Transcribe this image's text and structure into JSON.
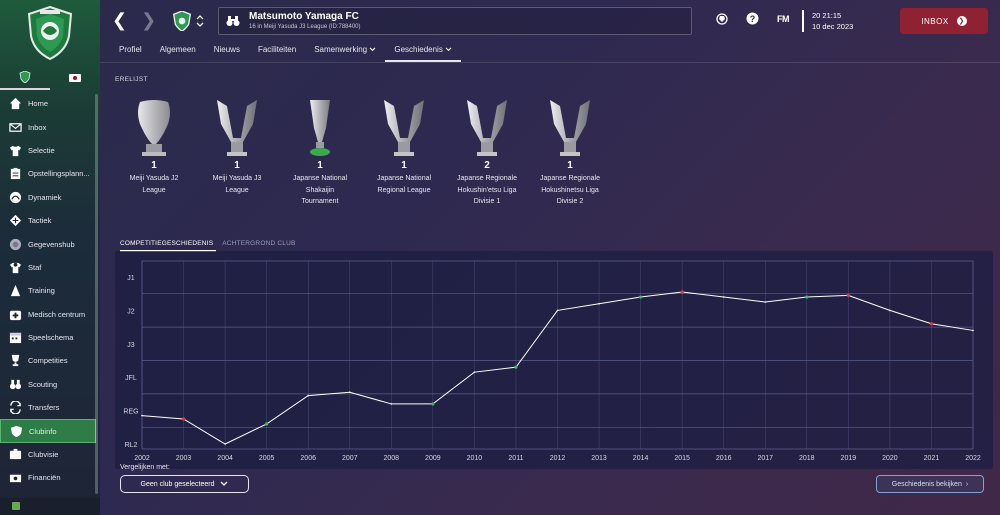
{
  "sidebar": {
    "logo": "matsumoto-yamaga-crest",
    "items": [
      {
        "label": "Home",
        "icon": "home-icon"
      },
      {
        "label": "Inbox",
        "icon": "mail-icon"
      },
      {
        "label": "Selectie",
        "icon": "shirt-icon"
      },
      {
        "label": "Opstellingsplann...",
        "icon": "clipboard-icon"
      },
      {
        "label": "Dynamiek",
        "icon": "dynamics-icon"
      },
      {
        "label": "Tactiek",
        "icon": "tactics-icon"
      },
      {
        "label": "Gegevenshub",
        "icon": "data-hub-icon"
      },
      {
        "label": "Staf",
        "icon": "staff-icon"
      },
      {
        "label": "Training",
        "icon": "training-cone-icon"
      },
      {
        "label": "Medisch centrum",
        "icon": "medical-icon"
      },
      {
        "label": "Speelschema",
        "icon": "calendar-icon"
      },
      {
        "label": "Competities",
        "icon": "trophy-icon"
      },
      {
        "label": "Scouting",
        "icon": "binoculars-icon"
      },
      {
        "label": "Transfers",
        "icon": "transfer-icon"
      },
      {
        "label": "Clubinfo",
        "icon": "shield-icon"
      },
      {
        "label": "Clubvisie",
        "icon": "vision-icon"
      },
      {
        "label": "Financiën",
        "icon": "finance-icon"
      }
    ],
    "active_index": 14
  },
  "header": {
    "team_name": "Matsumoto Yamaga FC",
    "team_sub": "16 in Meiji Yasuda J3 League (ID:788400)",
    "time": "20 21:15",
    "date": "10 dec 2023",
    "fm_logo": "FM",
    "inbox_label": "INBOX"
  },
  "tabs": [
    {
      "label": "Profiel",
      "active": false
    },
    {
      "label": "Algemeen",
      "active": false
    },
    {
      "label": "Nieuws",
      "active": false
    },
    {
      "label": "Faciliteiten",
      "active": false
    },
    {
      "label": "Samenwerking",
      "active": false,
      "dropdown": true
    },
    {
      "label": "Geschiedenis",
      "active": true,
      "dropdown": true
    }
  ],
  "honours": {
    "title": "ERELIJST",
    "items": [
      {
        "count": "1",
        "name_lines": [
          "Meiji Yasuda J2",
          "League"
        ],
        "style": "shield"
      },
      {
        "count": "1",
        "name_lines": [
          "Meiji Yasuda J3",
          "League"
        ],
        "style": "cup"
      },
      {
        "count": "1",
        "name_lines": [
          "Japanse National",
          "Shakaijin",
          "Tournament"
        ],
        "style": "green-cup"
      },
      {
        "count": "1",
        "name_lines": [
          "Japanse National",
          "Regional League"
        ],
        "style": "cup"
      },
      {
        "count": "2",
        "name_lines": [
          "Japanse Regionale",
          "Hokushin'etsu Liga",
          "Divisie 1"
        ],
        "style": "cup"
      },
      {
        "count": "1",
        "name_lines": [
          "Japanse Regionale",
          "Hokushinetsu Liga",
          "Divisie 2"
        ],
        "style": "cup"
      }
    ]
  },
  "history": {
    "subtabs": [
      {
        "label": "COMPETITIEGESCHIEDENIS",
        "active": true
      },
      {
        "label": "ACHTERGROND CLUB",
        "active": false
      }
    ],
    "compare_label": "Vergelijken met:",
    "compare_value": "Geen club geselecteerd",
    "history_button": "Geschiedenis bekijken"
  },
  "chart_data": {
    "type": "line",
    "title": "",
    "x": [
      2002,
      2003,
      2004,
      2005,
      2006,
      2007,
      2008,
      2009,
      2010,
      2011,
      2012,
      2013,
      2014,
      2015,
      2016,
      2017,
      2018,
      2019,
      2020,
      2021,
      2022
    ],
    "tier_labels": [
      "J1",
      "J2",
      "J3",
      "JFL",
      "REG",
      "RL2"
    ],
    "y": [
      4.15,
      4.25,
      5.0,
      4.4,
      3.55,
      3.45,
      3.8,
      3.8,
      2.85,
      2.7,
      1.0,
      0.8,
      0.6,
      0.45,
      0.6,
      0.75,
      0.6,
      0.55,
      1.0,
      1.4,
      1.6
    ],
    "markers": [
      "",
      "red",
      "",
      "green",
      "",
      "",
      "",
      "green",
      "",
      "green",
      "",
      "",
      "green",
      "red",
      "",
      "",
      "green",
      "red",
      "",
      "red",
      ""
    ],
    "ylim": [
      0,
      5
    ],
    "colors": {
      "line": "#ffffff",
      "red": "#e03a4a",
      "green": "#3cc05a",
      "grid": "#5a5e8c"
    }
  }
}
